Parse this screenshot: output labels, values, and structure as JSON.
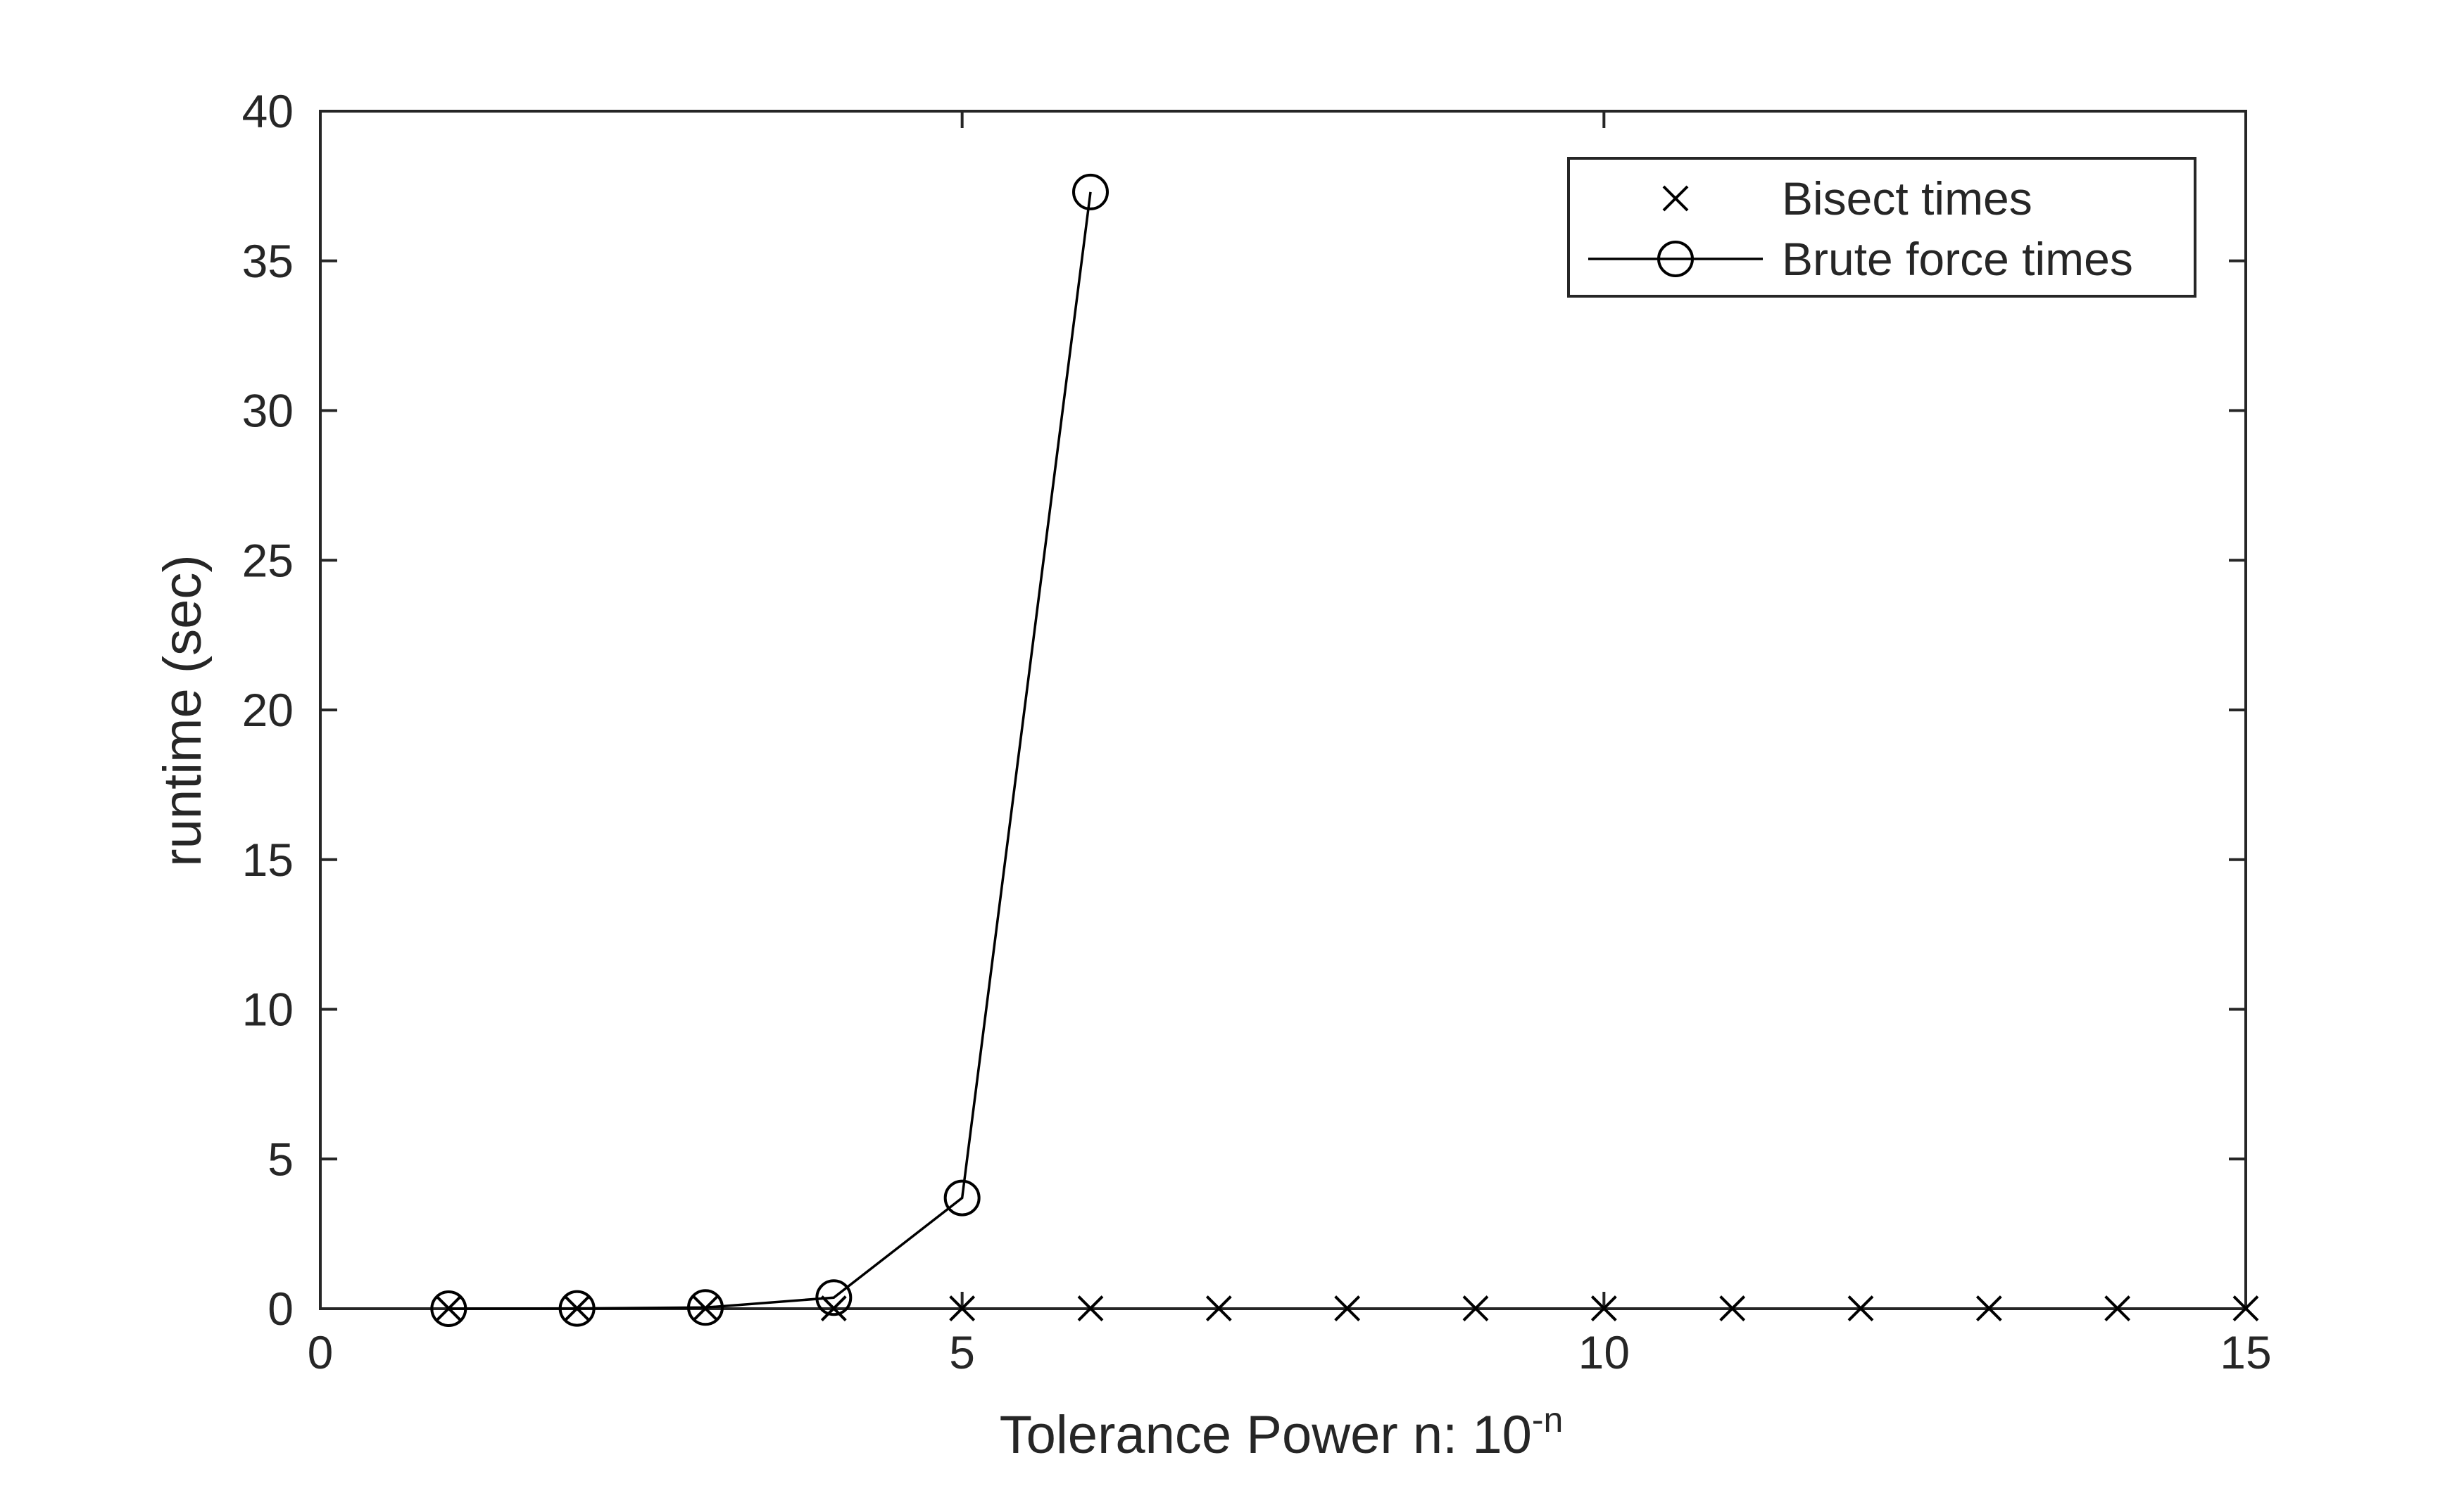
{
  "chart_data": {
    "type": "line",
    "title": "",
    "xlabel": "Tolerance  Power  n:  10",
    "xlabel_superscript": "-n",
    "ylabel": "runtime (sec)",
    "xlim": [
      0,
      15
    ],
    "ylim": [
      0,
      40
    ],
    "xticks": [
      0,
      5,
      10,
      15
    ],
    "yticks": [
      0,
      5,
      10,
      15,
      20,
      25,
      30,
      35,
      40
    ],
    "grid": false,
    "legend_position": "top-right",
    "series": [
      {
        "name": "Bisect times",
        "marker": "x",
        "line": false,
        "color": "#000000",
        "x": [
          1,
          2,
          3,
          4,
          5,
          6,
          7,
          8,
          9,
          10,
          11,
          12,
          13,
          14,
          15
        ],
        "y": [
          0.01,
          0.01,
          0.01,
          0.01,
          0.01,
          0.01,
          0.01,
          0.01,
          0.01,
          0.01,
          0.01,
          0.01,
          0.01,
          0.01,
          0.01
        ]
      },
      {
        "name": "Brute force times",
        "marker": "o",
        "line": true,
        "color": "#000000",
        "x": [
          1,
          2,
          3,
          4,
          5,
          6
        ],
        "y": [
          0.0,
          0.01,
          0.04,
          0.37,
          3.7,
          37.3
        ]
      }
    ]
  }
}
